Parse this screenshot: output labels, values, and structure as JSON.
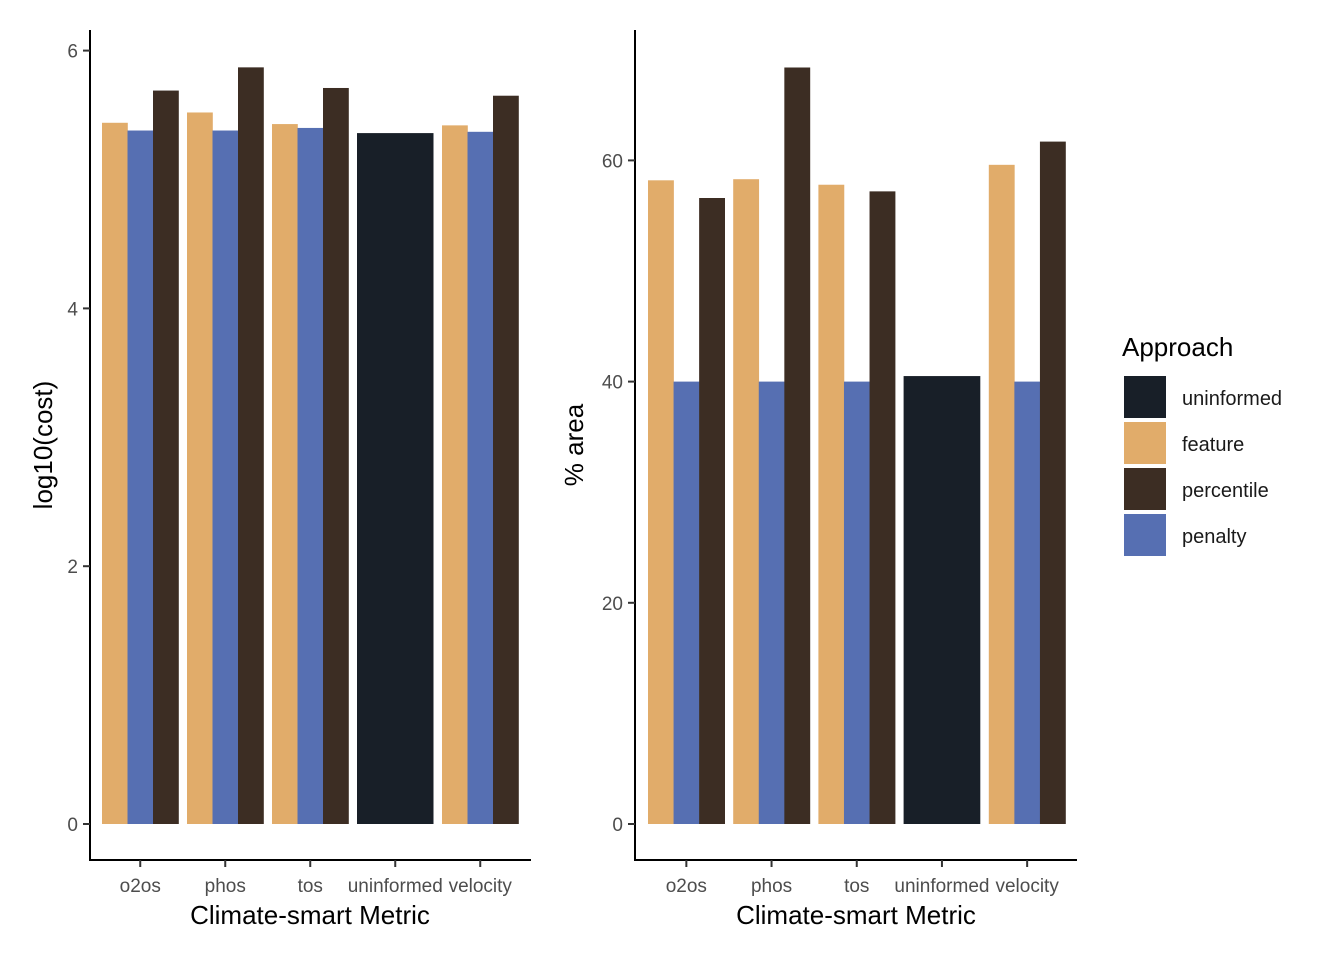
{
  "legend": {
    "title": "Approach",
    "entries": [
      {
        "key": "uninformed",
        "label": "uninformed",
        "color": "#181F28"
      },
      {
        "key": "feature",
        "label": "feature",
        "color": "#E1AC6A"
      },
      {
        "key": "percentile",
        "label": "percentile",
        "color": "#3C2D23"
      },
      {
        "key": "penalty",
        "label": "penalty",
        "color": "#566FB2"
      }
    ]
  },
  "chart_data": [
    {
      "type": "bar",
      "xlabel": "Climate-smart Metric",
      "ylabel": "log10(cost)",
      "ylim": [
        0,
        6
      ],
      "yticks": [
        "0",
        "2",
        "4",
        "6"
      ],
      "grid": false,
      "categories": [
        "o2os",
        "phos",
        "tos",
        "uninformed",
        "velocity"
      ],
      "series": [
        {
          "name": "feature",
          "values": [
            5.44,
            5.52,
            5.43,
            null,
            5.42
          ]
        },
        {
          "name": "penalty",
          "values": [
            5.38,
            5.38,
            5.4,
            null,
            5.37
          ]
        },
        {
          "name": "percentile",
          "values": [
            5.69,
            5.87,
            5.71,
            null,
            5.65
          ]
        },
        {
          "name": "uninformed",
          "values": [
            null,
            null,
            null,
            5.36,
            null
          ]
        }
      ]
    },
    {
      "type": "bar",
      "xlabel": "Climate-smart Metric",
      "ylabel": "% area",
      "ylim": [
        0,
        68
      ],
      "yticks": [
        "0",
        "20",
        "40",
        "60"
      ],
      "grid": false,
      "categories": [
        "o2os",
        "phos",
        "tos",
        "uninformed",
        "velocity"
      ],
      "series": [
        {
          "name": "feature",
          "values": [
            58.2,
            58.3,
            57.8,
            null,
            59.6
          ]
        },
        {
          "name": "penalty",
          "values": [
            40,
            40,
            40,
            null,
            40
          ]
        },
        {
          "name": "percentile",
          "values": [
            56.6,
            68.4,
            57.2,
            null,
            61.7
          ]
        },
        {
          "name": "uninformed",
          "values": [
            null,
            null,
            null,
            40.5,
            null
          ]
        }
      ]
    }
  ]
}
